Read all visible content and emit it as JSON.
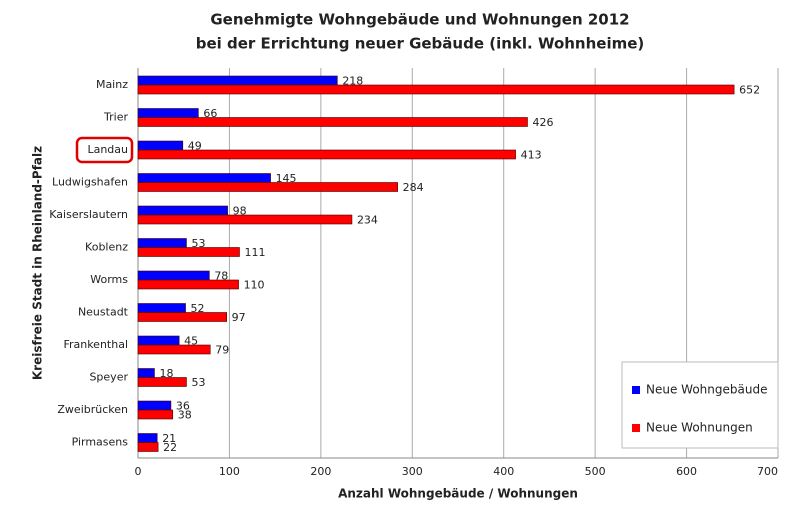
{
  "chart_data": {
    "type": "hbar",
    "title": "Genehmigte Wohngebäude und Wohnungen 2012",
    "subtitle": "bei der Errichtung neuer Gebäude (inkl. Wohnheime)",
    "x_label": "Anzahl Wohngebäude / Wohnungen",
    "y_label": "Kreisfreie Stadt in Rheinland-Pfalz",
    "categories": [
      "Mainz",
      "Trier",
      "Landau",
      "Ludwigshafen",
      "Kaiserslautern",
      "Koblenz",
      "Worms",
      "Neustadt",
      "Frankenthal",
      "Speyer",
      "Zweibrücken",
      "Pirmasens"
    ],
    "series": [
      {
        "name": "Neue Wohngebäude",
        "color": "#0000ff",
        "values": [
          218,
          66,
          49,
          145,
          98,
          53,
          78,
          52,
          45,
          18,
          36,
          21
        ]
      },
      {
        "name": "Neue Wohnungen",
        "color": "#ff0000",
        "values": [
          652,
          426,
          413,
          284,
          234,
          111,
          110,
          97,
          79,
          53,
          38,
          22
        ]
      }
    ],
    "xlim": [
      0,
      700
    ],
    "xticks": [
      0,
      100,
      200,
      300,
      400,
      500,
      600,
      700
    ],
    "grid": true,
    "legend": "lower right"
  }
}
